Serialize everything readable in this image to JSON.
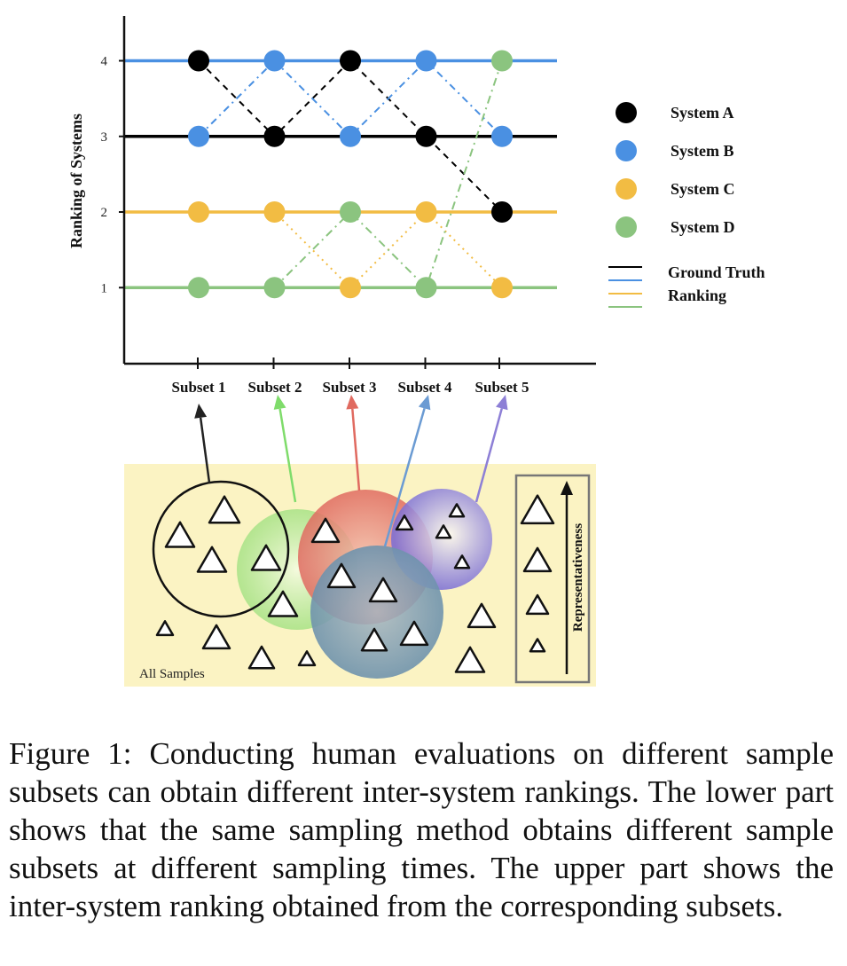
{
  "chart_data": {
    "type": "line",
    "ylabel": "Ranking of Systems",
    "xlabel": "",
    "categories": [
      "Subset 1",
      "Subset 2",
      "Subset 3",
      "Subset 4",
      "Subset 5"
    ],
    "yticks": [
      1,
      2,
      3,
      4
    ],
    "ylim": [
      0,
      4.4
    ],
    "grid": false,
    "legend_placement": "right",
    "series": [
      {
        "name": "System A",
        "color": "#000000",
        "values": [
          4,
          3,
          4,
          3,
          2
        ]
      },
      {
        "name": "System B",
        "color": "#4a90e2",
        "values": [
          3,
          4,
          3,
          4,
          3
        ]
      },
      {
        "name": "System C",
        "color": "#f2bc43",
        "values": [
          2,
          2,
          1,
          2,
          1
        ]
      },
      {
        "name": "System D",
        "color": "#8bc47f",
        "values": [
          1,
          1,
          2,
          1,
          4
        ]
      }
    ],
    "ground_truth": {
      "label_line1": "Ground Truth",
      "label_line2": "Ranking",
      "ranks": [
        {
          "rank": 4,
          "color": "#4a90e2"
        },
        {
          "rank": 3,
          "color": "#000000"
        },
        {
          "rank": 2,
          "color": "#f2bc43"
        },
        {
          "rank": 1,
          "color": "#8bc47f"
        }
      ]
    }
  },
  "diagram": {
    "all_samples_label": "All Samples",
    "representativeness_label": "Representativeness",
    "subset_colors": [
      "#222222",
      "#7fdc6b",
      "#e06a60",
      "#6b9bd3",
      "#8d7fd6"
    ]
  },
  "caption": "Figure 1: Conducting human evaluations on different sam­ple subsets can obtain different inter-system rankings. The lower part shows that the same sampling method obtains dif­ferent sample subsets at different sampling times. The upper part shows the inter-system ranking obtained from the cor­responding subsets."
}
